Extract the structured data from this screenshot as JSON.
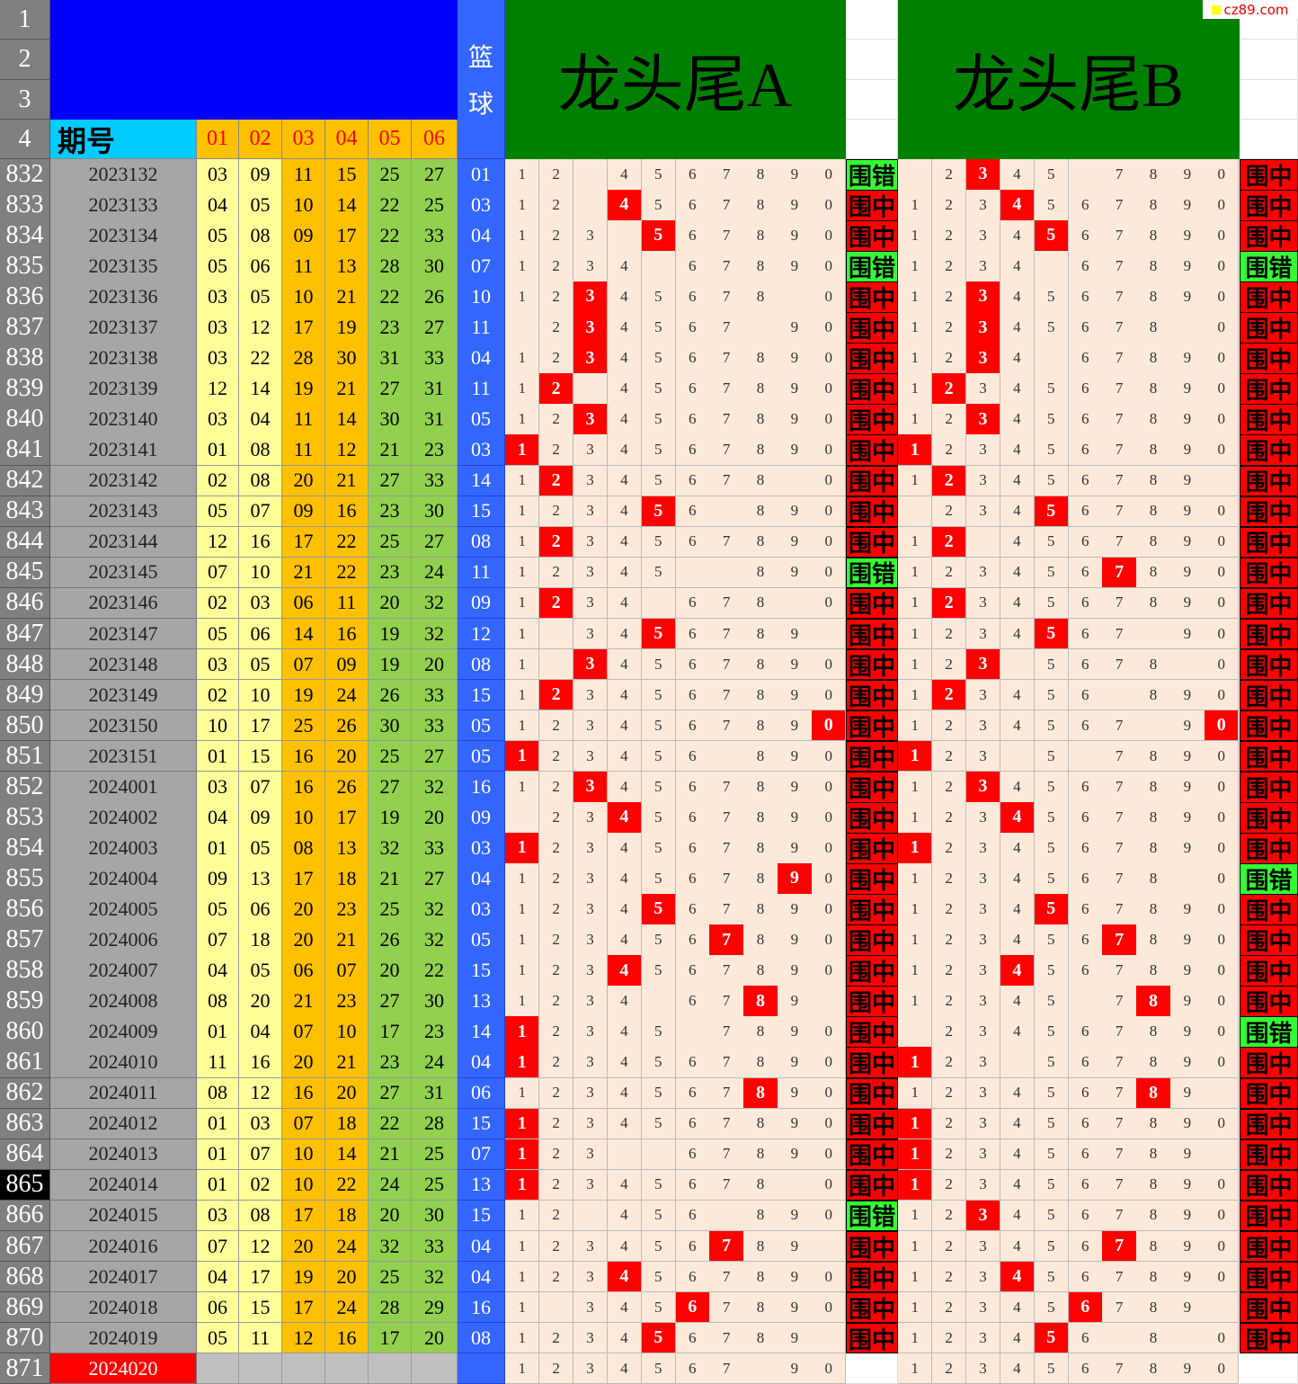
{
  "header": {
    "row_numbers": [
      "1",
      "2",
      "3",
      "4"
    ],
    "issue_label": "期号",
    "ball_labels": [
      "01",
      "02",
      "03",
      "04",
      "05",
      "06"
    ],
    "blue_label": [
      "篮",
      "球"
    ],
    "title_a": "龙头尾A",
    "title_b": "龙头尾B",
    "watermark": "cz89.com"
  },
  "ball_colors": [
    "#ffff99",
    "#ffff99",
    "#ffc000",
    "#ffc000",
    "#92d050",
    "#92d050"
  ],
  "selected_row": 865,
  "rows": [
    {
      "n": 832,
      "issue": "2023132",
      "reds": [
        "03",
        "09",
        "11",
        "15",
        "25",
        "27"
      ],
      "blue": "01",
      "a": "12 4567890",
      "a_hit": null,
      "a_result": "围错",
      "b": " 2345 7890",
      "b_hit": 2,
      "b_result": "围中"
    },
    {
      "n": 833,
      "issue": "2023133",
      "reds": [
        "04",
        "05",
        "10",
        "14",
        "22",
        "25"
      ],
      "blue": "03",
      "a": "12 4567890",
      "a_hit": 3,
      "a_result": "围中",
      "b": "1234567890",
      "b_hit": 3,
      "b_result": "围中"
    },
    {
      "n": 834,
      "issue": "2023134",
      "reds": [
        "05",
        "08",
        "09",
        "17",
        "22",
        "33"
      ],
      "blue": "04",
      "a": "123 567890",
      "a_hit": 4,
      "a_result": "围中",
      "b": "1234567890",
      "b_hit": 4,
      "b_result": "围中"
    },
    {
      "n": 835,
      "issue": "2023135",
      "reds": [
        "05",
        "06",
        "11",
        "13",
        "28",
        "30"
      ],
      "blue": "07",
      "a": "1234 67890",
      "a_hit": null,
      "a_result": "围错",
      "b": "1234 67890",
      "b_hit": null,
      "b_result": "围错"
    },
    {
      "n": 836,
      "issue": "2023136",
      "reds": [
        "03",
        "05",
        "10",
        "21",
        "22",
        "26"
      ],
      "blue": "10",
      "a": "12345678 0",
      "a_hit": 2,
      "a_result": "围中",
      "b": "1234567890",
      "b_hit": 2,
      "b_result": "围中"
    },
    {
      "n": 837,
      "issue": "2023137",
      "reds": [
        "03",
        "12",
        "17",
        "19",
        "23",
        "27"
      ],
      "blue": "11",
      "a": " 234567 90",
      "a_hit": 2,
      "a_result": "围中",
      "b": "12345678 0",
      "b_hit": 2,
      "b_result": "围中"
    },
    {
      "n": 838,
      "issue": "2023138",
      "reds": [
        "03",
        "22",
        "28",
        "30",
        "31",
        "33"
      ],
      "blue": "04",
      "a": "1234567890",
      "a_hit": 2,
      "a_result": "围中",
      "b": "1234 67890",
      "b_hit": 2,
      "b_result": "围中"
    },
    {
      "n": 839,
      "issue": "2023139",
      "reds": [
        "12",
        "14",
        "19",
        "21",
        "27",
        "31"
      ],
      "blue": "11",
      "a": "12 4567890",
      "a_hit": 1,
      "a_result": "围中",
      "b": "1234567890",
      "b_hit": 1,
      "b_result": "围中"
    },
    {
      "n": 840,
      "issue": "2023140",
      "reds": [
        "03",
        "04",
        "11",
        "14",
        "30",
        "31"
      ],
      "blue": "05",
      "a": "1234567890",
      "a_hit": 2,
      "a_result": "围中",
      "b": "1234567890",
      "b_hit": 2,
      "b_result": "围中"
    },
    {
      "n": 841,
      "issue": "2023141",
      "reds": [
        "01",
        "08",
        "11",
        "12",
        "21",
        "23"
      ],
      "blue": "03",
      "a": "1234567890",
      "a_hit": 0,
      "a_result": "围中",
      "b": "1234567890",
      "b_hit": 0,
      "b_result": "围中"
    },
    {
      "n": 842,
      "issue": "2023142",
      "reds": [
        "02",
        "08",
        "20",
        "21",
        "27",
        "33"
      ],
      "blue": "14",
      "a": "12345678 0",
      "a_hit": 1,
      "a_result": "围中",
      "b": "123456789 ",
      "b_hit": 1,
      "b_result": "围中"
    },
    {
      "n": 843,
      "issue": "2023143",
      "reds": [
        "05",
        "07",
        "09",
        "16",
        "23",
        "30"
      ],
      "blue": "15",
      "a": "123456 890",
      "a_hit": 4,
      "a_result": "围中",
      "b": " 234567890",
      "b_hit": 4,
      "b_result": "围中"
    },
    {
      "n": 844,
      "issue": "2023144",
      "reds": [
        "12",
        "16",
        "17",
        "22",
        "25",
        "27"
      ],
      "blue": "08",
      "a": "1234567890",
      "a_hit": 1,
      "a_result": "围中",
      "b": "12 4567890",
      "b_hit": 1,
      "b_result": "围中"
    },
    {
      "n": 845,
      "issue": "2023145",
      "reds": [
        "07",
        "10",
        "21",
        "22",
        "23",
        "24"
      ],
      "blue": "11",
      "a": "12345  890",
      "a_hit": null,
      "a_result": "围错",
      "b": "1234567890",
      "b_hit": 6,
      "b_result": "围中"
    },
    {
      "n": 846,
      "issue": "2023146",
      "reds": [
        "02",
        "03",
        "06",
        "11",
        "20",
        "32"
      ],
      "blue": "09",
      "a": "1234 678 0",
      "a_hit": 1,
      "a_result": "围中",
      "b": "1234567890",
      "b_hit": 1,
      "b_result": "围中"
    },
    {
      "n": 847,
      "issue": "2023147",
      "reds": [
        "05",
        "06",
        "14",
        "16",
        "19",
        "32"
      ],
      "blue": "12",
      "a": "1 3456789 ",
      "a_hit": 4,
      "a_result": "围中",
      "b": "1234567 90",
      "b_hit": 4,
      "b_result": "围中"
    },
    {
      "n": 848,
      "issue": "2023148",
      "reds": [
        "03",
        "05",
        "07",
        "09",
        "19",
        "20"
      ],
      "blue": "08",
      "a": "1 34567890",
      "a_hit": 2,
      "a_result": "围中",
      "b": "123 5678 0",
      "b_hit": 2,
      "b_result": "围中"
    },
    {
      "n": 849,
      "issue": "2023149",
      "reds": [
        "02",
        "10",
        "19",
        "24",
        "26",
        "33"
      ],
      "blue": "15",
      "a": "1234567890",
      "a_hit": 1,
      "a_result": "围中",
      "b": "123456 890",
      "b_hit": 1,
      "b_result": "围中"
    },
    {
      "n": 850,
      "issue": "2023150",
      "reds": [
        "10",
        "17",
        "25",
        "26",
        "30",
        "33"
      ],
      "blue": "05",
      "a": "1234567890",
      "a_hit": 9,
      "a_result": "围中",
      "b": "1234567 90",
      "b_hit": 9,
      "b_result": "围中"
    },
    {
      "n": 851,
      "issue": "2023151",
      "reds": [
        "01",
        "15",
        "16",
        "20",
        "25",
        "27"
      ],
      "blue": "05",
      "a": "123456 890",
      "a_hit": 0,
      "a_result": "围中",
      "b": "123 5 7890",
      "b_hit": 0,
      "b_result": "围中"
    },
    {
      "n": 852,
      "issue": "2024001",
      "reds": [
        "03",
        "07",
        "16",
        "26",
        "27",
        "32"
      ],
      "blue": "16",
      "a": "1234567890",
      "a_hit": 2,
      "a_result": "围中",
      "b": "1234567890",
      "b_hit": 2,
      "b_result": "围中"
    },
    {
      "n": 853,
      "issue": "2024002",
      "reds": [
        "04",
        "09",
        "10",
        "17",
        "19",
        "20"
      ],
      "blue": "09",
      "a": " 234567890",
      "a_hit": 3,
      "a_result": "围中",
      "b": "1234567890",
      "b_hit": 3,
      "b_result": "围中"
    },
    {
      "n": 854,
      "issue": "2024003",
      "reds": [
        "01",
        "05",
        "08",
        "13",
        "32",
        "33"
      ],
      "blue": "03",
      "a": "1234567890",
      "a_hit": 0,
      "a_result": "围中",
      "b": "1234567890",
      "b_hit": 0,
      "b_result": "围中"
    },
    {
      "n": 855,
      "issue": "2024004",
      "reds": [
        "09",
        "13",
        "17",
        "18",
        "21",
        "27"
      ],
      "blue": "04",
      "a": "1234567890",
      "a_hit": 8,
      "a_result": "围中",
      "b": "12345678 0",
      "b_hit": null,
      "b_result": "围错"
    },
    {
      "n": 856,
      "issue": "2024005",
      "reds": [
        "05",
        "06",
        "20",
        "23",
        "25",
        "32"
      ],
      "blue": "03",
      "a": "1234567890",
      "a_hit": 4,
      "a_result": "围中",
      "b": "1234567890",
      "b_hit": 4,
      "b_result": "围中"
    },
    {
      "n": 857,
      "issue": "2024006",
      "reds": [
        "07",
        "18",
        "20",
        "21",
        "26",
        "32"
      ],
      "blue": "05",
      "a": "1234567890",
      "a_hit": 6,
      "a_result": "围中",
      "b": "1234567890",
      "b_hit": 6,
      "b_result": "围中"
    },
    {
      "n": 858,
      "issue": "2024007",
      "reds": [
        "04",
        "05",
        "06",
        "07",
        "20",
        "22"
      ],
      "blue": "15",
      "a": "1234567890",
      "a_hit": 3,
      "a_result": "围中",
      "b": "1234567890",
      "b_hit": 3,
      "b_result": "围中"
    },
    {
      "n": 859,
      "issue": "2024008",
      "reds": [
        "08",
        "20",
        "21",
        "23",
        "27",
        "30"
      ],
      "blue": "13",
      "a": "1234 6789 ",
      "a_hit": 7,
      "a_result": "围中",
      "b": "12345 7890",
      "b_hit": 7,
      "b_result": "围中"
    },
    {
      "n": 860,
      "issue": "2024009",
      "reds": [
        "01",
        "04",
        "07",
        "10",
        "17",
        "23"
      ],
      "blue": "14",
      "a": "12345 7890",
      "a_hit": 0,
      "a_result": "围中",
      "b": " 234567890",
      "b_hit": null,
      "b_result": "围错"
    },
    {
      "n": 861,
      "issue": "2024010",
      "reds": [
        "11",
        "16",
        "20",
        "21",
        "23",
        "24"
      ],
      "blue": "04",
      "a": "1234567890",
      "a_hit": 0,
      "a_result": "围中",
      "b": "123 567890",
      "b_hit": 0,
      "b_result": "围中"
    },
    {
      "n": 862,
      "issue": "2024011",
      "reds": [
        "08",
        "12",
        "16",
        "20",
        "27",
        "31"
      ],
      "blue": "06",
      "a": "1234567890",
      "a_hit": 7,
      "a_result": "围中",
      "b": "123456789 ",
      "b_hit": 7,
      "b_result": "围中"
    },
    {
      "n": 863,
      "issue": "2024012",
      "reds": [
        "01",
        "03",
        "07",
        "18",
        "22",
        "28"
      ],
      "blue": "15",
      "a": "1234567890",
      "a_hit": 0,
      "a_result": "围中",
      "b": "1234567890",
      "b_hit": 0,
      "b_result": "围中"
    },
    {
      "n": 864,
      "issue": "2024013",
      "reds": [
        "01",
        "07",
        "10",
        "14",
        "21",
        "25"
      ],
      "blue": "07",
      "a": "123  67890",
      "a_hit": 0,
      "a_result": "围中",
      "b": "123456789 ",
      "b_hit": 0,
      "b_result": "围中"
    },
    {
      "n": 865,
      "issue": "2024014",
      "reds": [
        "01",
        "02",
        "10",
        "22",
        "24",
        "25"
      ],
      "blue": "13",
      "a": "12345678 0",
      "a_hit": 0,
      "a_result": "围中",
      "b": "1234567890",
      "b_hit": 0,
      "b_result": "围中"
    },
    {
      "n": 866,
      "issue": "2024015",
      "reds": [
        "03",
        "08",
        "17",
        "18",
        "20",
        "30"
      ],
      "blue": "15",
      "a": "12 456 890",
      "a_hit": null,
      "a_result": "围错",
      "b": "1234567890",
      "b_hit": 2,
      "b_result": "围中"
    },
    {
      "n": 867,
      "issue": "2024016",
      "reds": [
        "07",
        "12",
        "20",
        "24",
        "32",
        "33"
      ],
      "blue": "04",
      "a": "123456789 ",
      "a_hit": 6,
      "a_result": "围中",
      "b": "1234567890",
      "b_hit": 6,
      "b_result": "围中"
    },
    {
      "n": 868,
      "issue": "2024017",
      "reds": [
        "04",
        "17",
        "19",
        "20",
        "25",
        "32"
      ],
      "blue": "04",
      "a": "1234567890",
      "a_hit": 3,
      "a_result": "围中",
      "b": "1234567890",
      "b_hit": 3,
      "b_result": "围中"
    },
    {
      "n": 869,
      "issue": "2024018",
      "reds": [
        "06",
        "15",
        "17",
        "24",
        "28",
        "29"
      ],
      "blue": "16",
      "a": "1 34567890",
      "a_hit": 5,
      "a_result": "围中",
      "b": "123456789 ",
      "b_hit": 5,
      "b_result": "围中"
    },
    {
      "n": 870,
      "issue": "2024019",
      "reds": [
        "05",
        "11",
        "12",
        "16",
        "17",
        "20"
      ],
      "blue": "08",
      "a": "123456789 ",
      "a_hit": 4,
      "a_result": "围中",
      "b": "123456 8 0",
      "b_hit": 4,
      "b_result": "围中"
    },
    {
      "n": 871,
      "issue": "2024020",
      "a": "1234567 90",
      "b": "1234567890"
    }
  ]
}
